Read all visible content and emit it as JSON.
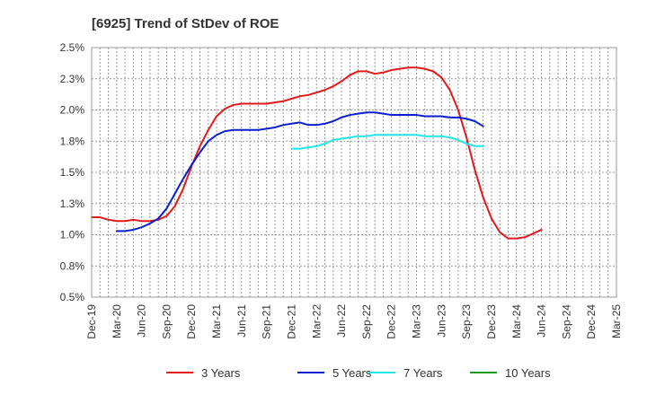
{
  "chart_data": {
    "type": "line",
    "title": "[6925]  Trend of StDev of ROE",
    "xlabel": "",
    "ylabel": "",
    "x_ticks": [
      "Dec-19",
      "Mar-20",
      "Jun-20",
      "Sep-20",
      "Dec-20",
      "Mar-21",
      "Jun-21",
      "Sep-21",
      "Dec-21",
      "Mar-22",
      "Jun-22",
      "Sep-22",
      "Dec-22",
      "Mar-23",
      "Jun-23",
      "Sep-23",
      "Dec-23",
      "Mar-24",
      "Jun-24",
      "Sep-24",
      "Dec-24",
      "Mar-25"
    ],
    "y_ticks": [
      "0.5%",
      "0.8%",
      "1.0%",
      "1.3%",
      "1.5%",
      "1.8%",
      "2.0%",
      "2.3%",
      "2.5%"
    ],
    "ylim": [
      0.5,
      2.5
    ],
    "grid": true,
    "legend_position": "bottom",
    "series": [
      {
        "name": "3 Years",
        "color": "#e31a1c",
        "start_index": 0,
        "values": [
          1.14,
          1.14,
          1.12,
          1.11,
          1.11,
          1.12,
          1.11,
          1.11,
          1.12,
          1.15,
          1.23,
          1.37,
          1.55,
          1.71,
          1.84,
          1.95,
          2.01,
          2.04,
          2.05,
          2.05,
          2.05,
          2.05,
          2.06,
          2.07,
          2.09,
          2.11,
          2.12,
          2.14,
          2.16,
          2.19,
          2.23,
          2.28,
          2.31,
          2.31,
          2.29,
          2.3,
          2.32,
          2.33,
          2.34,
          2.34,
          2.33,
          2.31,
          2.26,
          2.16,
          2.0,
          1.78,
          1.52,
          1.3,
          1.13,
          1.02,
          0.97,
          0.97,
          0.98,
          1.01,
          1.04
        ]
      },
      {
        "name": "5 Years",
        "color": "#0a1fd0",
        "start_index": 3,
        "values": [
          1.03,
          1.03,
          1.04,
          1.06,
          1.09,
          1.13,
          1.21,
          1.33,
          1.45,
          1.56,
          1.66,
          1.75,
          1.8,
          1.83,
          1.84,
          1.84,
          1.84,
          1.84,
          1.85,
          1.86,
          1.88,
          1.89,
          1.9,
          1.88,
          1.88,
          1.89,
          1.91,
          1.94,
          1.96,
          1.97,
          1.98,
          1.98,
          1.97,
          1.96,
          1.96,
          1.96,
          1.96,
          1.95,
          1.95,
          1.95,
          1.94,
          1.94,
          1.93,
          1.91,
          1.87
        ]
      },
      {
        "name": "7 Years",
        "color": "#22e6e6",
        "start_index": 24,
        "values": [
          1.69,
          1.69,
          1.7,
          1.71,
          1.73,
          1.76,
          1.77,
          1.78,
          1.79,
          1.79,
          1.8,
          1.8,
          1.8,
          1.8,
          1.8,
          1.8,
          1.79,
          1.79,
          1.79,
          1.78,
          1.76,
          1.73,
          1.71,
          1.71
        ]
      },
      {
        "name": "10 Years",
        "color": "#1a9a1a",
        "start_index": 0,
        "values": []
      }
    ]
  }
}
